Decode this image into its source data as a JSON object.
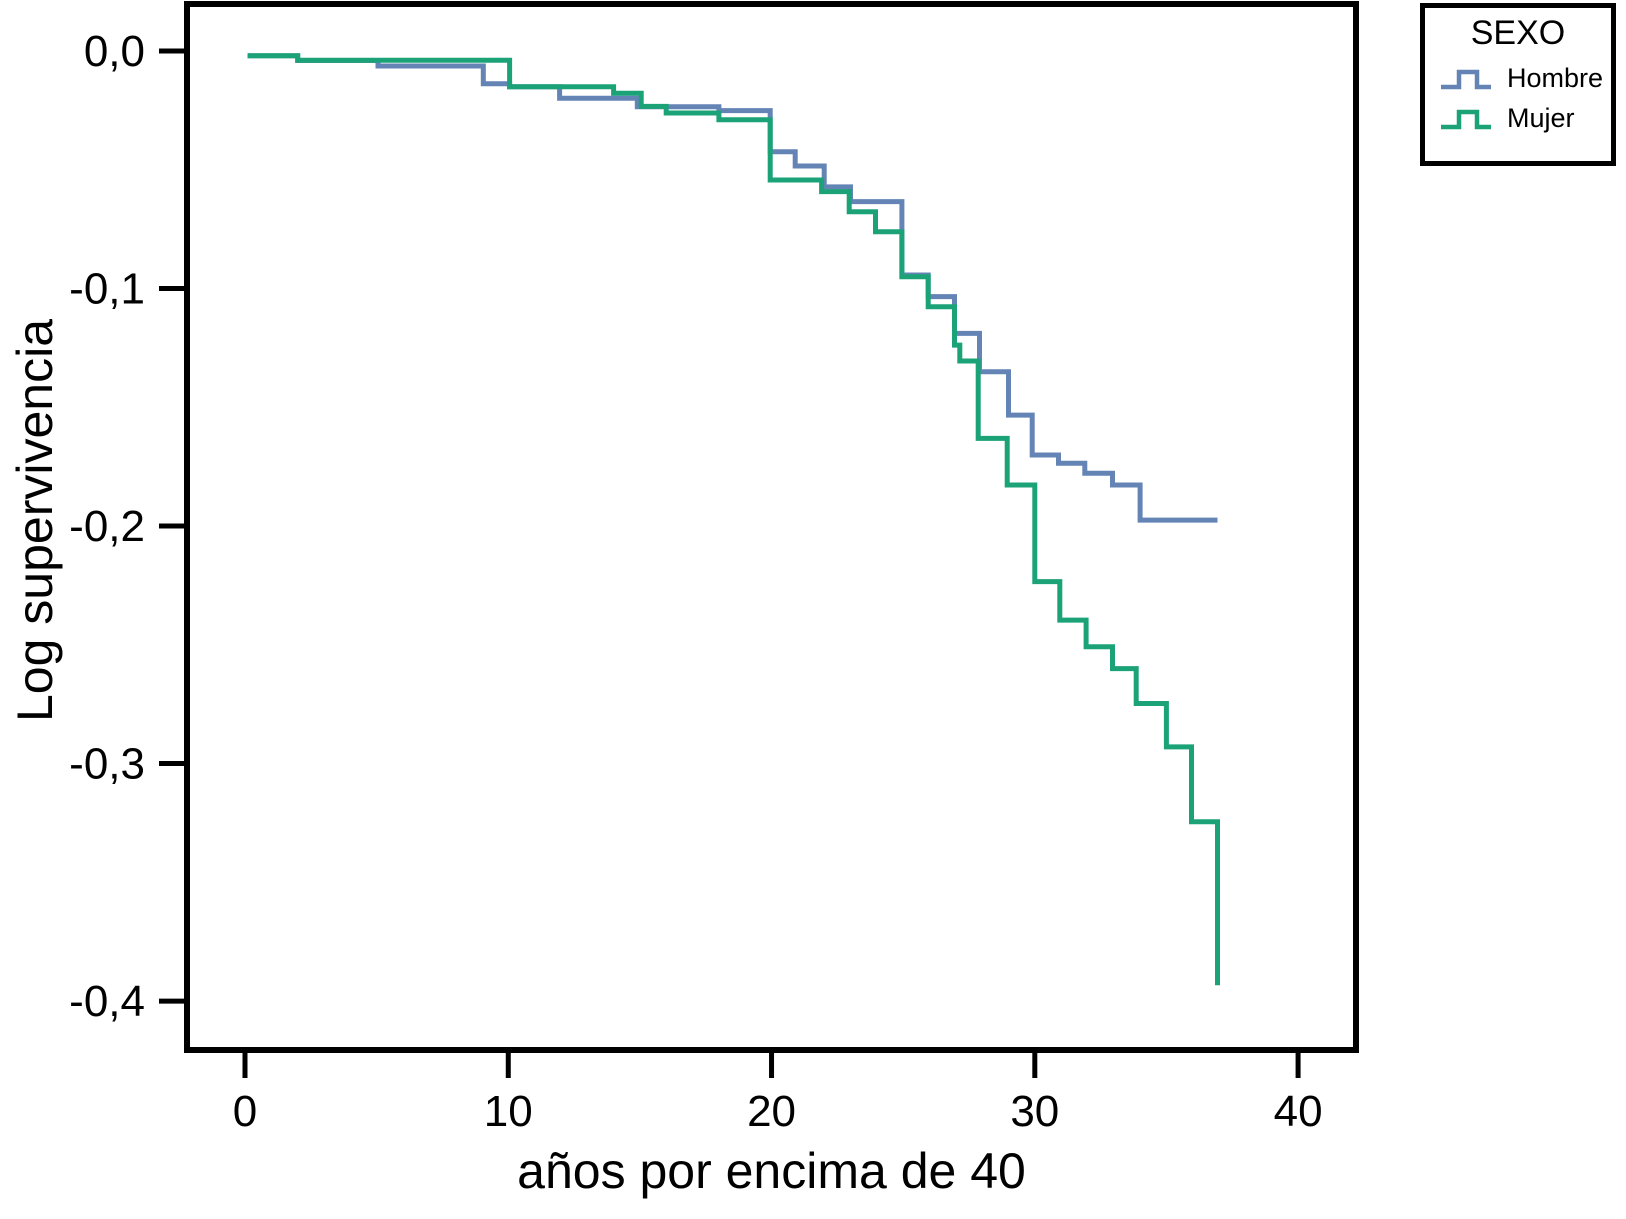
{
  "page": {
    "background": "#ffffff",
    "text_color": "#000000"
  },
  "chart_data": {
    "type": "line",
    "subtype": "step-function-survival",
    "title": "",
    "xlabel": "años por encima de 40",
    "ylabel": "Log supervivencia",
    "xlim": [
      -2.203,
      42.2
    ],
    "ylim": [
      -0.4206,
      0.0198
    ],
    "grid": false,
    "x_ticks": {
      "values": [
        0,
        10,
        20,
        30,
        40
      ],
      "labels": [
        "0",
        "10",
        "20",
        "30",
        "40"
      ]
    },
    "y_ticks": {
      "values": [
        0,
        -0.1,
        -0.2,
        -0.3,
        -0.4
      ],
      "labels": [
        "0,0",
        "-0,1",
        "-0,2",
        "-0,3",
        "-0,4"
      ]
    },
    "legend": {
      "title": "SEXO",
      "position": "outside-top-right"
    },
    "axis_color": "#000000",
    "series": [
      {
        "name": "Hombre",
        "color": "#6484B6",
        "start": [
          0.1,
          -0.002
        ],
        "steps": [
          [
            2.0,
            -0.004
          ],
          [
            5.05,
            -0.0063
          ],
          [
            9.05,
            -0.0138
          ],
          [
            10.05,
            -0.015
          ],
          [
            11.95,
            -0.0199
          ],
          [
            14.9,
            -0.0235
          ],
          [
            18.0,
            -0.0251
          ],
          [
            19.95,
            -0.0424
          ],
          [
            20.9,
            -0.0484
          ],
          [
            22.0,
            -0.0572
          ],
          [
            23.0,
            -0.0634
          ],
          [
            24.95,
            -0.0943
          ],
          [
            25.95,
            -0.1034
          ],
          [
            26.95,
            -0.1189
          ],
          [
            27.9,
            -0.135
          ],
          [
            29.0,
            -0.1533
          ],
          [
            29.9,
            -0.1701
          ],
          [
            30.9,
            -0.1736
          ],
          [
            31.9,
            -0.1778
          ],
          [
            32.95,
            -0.1827
          ],
          [
            34.0,
            -0.1975
          ]
        ],
        "end_x": 36.94,
        "end_value": -0.1975
      },
      {
        "name": "Mujer",
        "color": "#1BA377",
        "start": [
          0.1,
          -0.002
        ],
        "steps": [
          [
            2.0,
            -0.0039
          ],
          [
            10.05,
            -0.015
          ],
          [
            14.0,
            -0.0178
          ],
          [
            15.05,
            -0.0233
          ],
          [
            16.0,
            -0.0261
          ],
          [
            18.0,
            -0.0289
          ],
          [
            19.95,
            -0.0543
          ],
          [
            21.9,
            -0.0592
          ],
          [
            22.95,
            -0.0677
          ],
          [
            23.95,
            -0.0761
          ],
          [
            24.95,
            -0.095
          ],
          [
            25.95,
            -0.1077
          ],
          [
            26.95,
            -0.1238
          ],
          [
            27.15,
            -0.1305
          ],
          [
            27.85,
            -0.1631
          ],
          [
            28.95,
            -0.1827
          ],
          [
            30.0,
            -0.2234
          ],
          [
            30.95,
            -0.2396
          ],
          [
            31.95,
            -0.2508
          ],
          [
            32.95,
            -0.26
          ],
          [
            33.85,
            -0.2747
          ],
          [
            35.0,
            -0.293
          ],
          [
            35.95,
            -0.3245
          ],
          [
            36.94,
            -0.3933
          ]
        ],
        "end_x": 36.94,
        "end_value": -0.3933
      }
    ]
  }
}
